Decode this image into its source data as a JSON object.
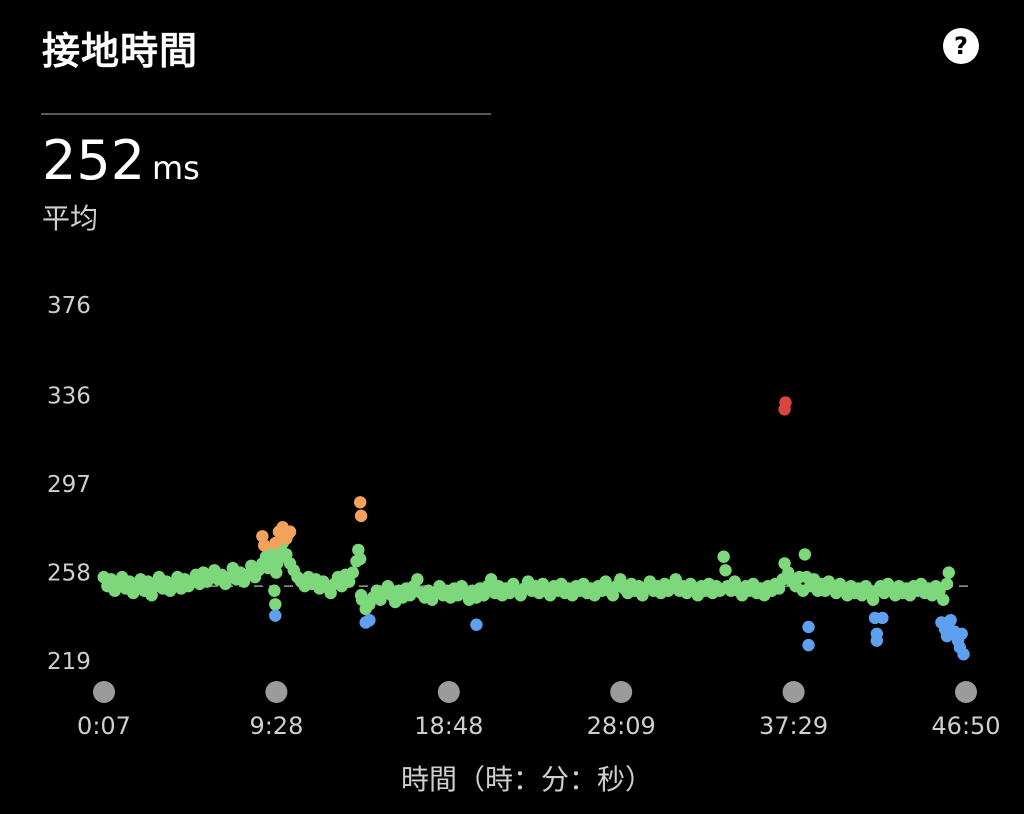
{
  "header": {
    "title": "接地時間",
    "help_label": "?"
  },
  "summary": {
    "value": "252",
    "unit": "ms",
    "label": "平均"
  },
  "colors": {
    "background": "#000000",
    "green": "#7CD87A",
    "orange": "#F2A25A",
    "blue": "#5EA0F0",
    "red": "#D9453F",
    "average_line": "#9a9a9a",
    "marker": "#9b9b9b"
  },
  "chart_data": {
    "type": "scatter",
    "ylim": [
      219,
      376
    ],
    "yticks": [
      "376",
      "336",
      "297",
      "258",
      "219"
    ],
    "xticks": [
      "0:07",
      "9:28",
      "18:48",
      "28:09",
      "37:29",
      "46:50"
    ],
    "xlim_minutes": [
      0.117,
      46.833
    ],
    "xlabel": "時間（時：分：秒）",
    "average": 252,
    "series": [
      {
        "color": "green",
        "points": [
          [
            0.1,
            256
          ],
          [
            0.3,
            252
          ],
          [
            0.5,
            255
          ],
          [
            0.7,
            250
          ],
          [
            0.9,
            253
          ],
          [
            1.1,
            256
          ],
          [
            1.3,
            251
          ],
          [
            1.5,
            254
          ],
          [
            1.7,
            249
          ],
          [
            1.9,
            252
          ],
          [
            2.1,
            255
          ],
          [
            2.3,
            250
          ],
          [
            2.5,
            254
          ],
          [
            2.7,
            248
          ],
          [
            2.9,
            252
          ],
          [
            3.1,
            256
          ],
          [
            3.3,
            251
          ],
          [
            3.5,
            254
          ],
          [
            3.7,
            250
          ],
          [
            3.9,
            253
          ],
          [
            4.1,
            256
          ],
          [
            4.3,
            251
          ],
          [
            4.5,
            255
          ],
          [
            4.7,
            252
          ],
          [
            4.9,
            254
          ],
          [
            5.1,
            257
          ],
          [
            5.3,
            253
          ],
          [
            5.5,
            258
          ],
          [
            5.7,
            254
          ],
          [
            5.9,
            256
          ],
          [
            6.1,
            259
          ],
          [
            6.3,
            255
          ],
          [
            6.5,
            257
          ],
          [
            6.7,
            253
          ],
          [
            6.9,
            256
          ],
          [
            7.1,
            260
          ],
          [
            7.3,
            255
          ],
          [
            7.5,
            258
          ],
          [
            7.7,
            254
          ],
          [
            7.9,
            257
          ],
          [
            8.1,
            261
          ],
          [
            8.3,
            256
          ],
          [
            8.5,
            259
          ],
          [
            8.7,
            262
          ],
          [
            8.9,
            265
          ],
          [
            9.0,
            260
          ],
          [
            9.1,
            268
          ],
          [
            9.2,
            264
          ],
          [
            9.3,
            266
          ],
          [
            9.35,
            250
          ],
          [
            9.4,
            244
          ],
          [
            9.45,
            258
          ],
          [
            9.5,
            262
          ],
          [
            9.6,
            270
          ],
          [
            9.7,
            268
          ],
          [
            9.8,
            271
          ],
          [
            9.9,
            265
          ],
          [
            10.0,
            266
          ],
          [
            10.2,
            262
          ],
          [
            10.4,
            259
          ],
          [
            10.6,
            256
          ],
          [
            10.8,
            254
          ],
          [
            11.0,
            252
          ],
          [
            11.2,
            256
          ],
          [
            11.4,
            253
          ],
          [
            11.6,
            255
          ],
          [
            11.8,
            251
          ],
          [
            12.0,
            254
          ],
          [
            12.2,
            252
          ],
          [
            12.4,
            249
          ],
          [
            12.6,
            253
          ],
          [
            12.8,
            256
          ],
          [
            13.0,
            252
          ],
          [
            13.2,
            257
          ],
          [
            13.4,
            254
          ],
          [
            13.6,
            258
          ],
          [
            13.8,
            263
          ],
          [
            13.9,
            268
          ],
          [
            14.0,
            264
          ],
          [
            14.05,
            248
          ],
          [
            14.1,
            246
          ],
          [
            14.3,
            242
          ],
          [
            14.5,
            244
          ],
          [
            14.7,
            247
          ],
          [
            14.9,
            250
          ],
          [
            15.1,
            246
          ],
          [
            15.3,
            249
          ],
          [
            15.5,
            252
          ],
          [
            15.7,
            248
          ],
          [
            15.9,
            245
          ],
          [
            16.1,
            250
          ],
          [
            16.3,
            247
          ],
          [
            16.5,
            251
          ],
          [
            16.7,
            248
          ],
          [
            16.9,
            252
          ],
          [
            17.1,
            255
          ],
          [
            17.3,
            249
          ],
          [
            17.5,
            247
          ],
          [
            17.7,
            250
          ],
          [
            17.9,
            246
          ],
          [
            18.1,
            249
          ],
          [
            18.3,
            252
          ],
          [
            18.5,
            248
          ],
          [
            18.7,
            250
          ],
          [
            18.9,
            247
          ],
          [
            19.1,
            251
          ],
          [
            19.3,
            248
          ],
          [
            19.5,
            252
          ],
          [
            19.7,
            249
          ],
          [
            19.9,
            246
          ],
          [
            20.1,
            250
          ],
          [
            20.3,
            247
          ],
          [
            20.5,
            251
          ],
          [
            20.7,
            248
          ],
          [
            20.9,
            252
          ],
          [
            21.1,
            255
          ],
          [
            21.3,
            249
          ],
          [
            21.5,
            252
          ],
          [
            21.7,
            248
          ],
          [
            21.9,
            251
          ],
          [
            22.1,
            249
          ],
          [
            22.3,
            253
          ],
          [
            22.5,
            250
          ],
          [
            22.7,
            248
          ],
          [
            22.9,
            251
          ],
          [
            23.1,
            254
          ],
          [
            23.3,
            250
          ],
          [
            23.5,
            252
          ],
          [
            23.7,
            249
          ],
          [
            23.9,
            253
          ],
          [
            24.1,
            250
          ],
          [
            24.3,
            248
          ],
          [
            24.5,
            252
          ],
          [
            24.7,
            250
          ],
          [
            24.9,
            253
          ],
          [
            25.1,
            249
          ],
          [
            25.3,
            251
          ],
          [
            25.5,
            248
          ],
          [
            25.7,
            252
          ],
          [
            25.9,
            250
          ],
          [
            26.1,
            253
          ],
          [
            26.3,
            249
          ],
          [
            26.5,
            251
          ],
          [
            26.7,
            248
          ],
          [
            26.9,
            252
          ],
          [
            27.1,
            250
          ],
          [
            27.3,
            254
          ],
          [
            27.5,
            250
          ],
          [
            27.7,
            248
          ],
          [
            27.9,
            252
          ],
          [
            28.1,
            255
          ],
          [
            28.3,
            251
          ],
          [
            28.5,
            249
          ],
          [
            28.7,
            253
          ],
          [
            28.9,
            250
          ],
          [
            29.1,
            252
          ],
          [
            29.3,
            248
          ],
          [
            29.5,
            251
          ],
          [
            29.7,
            254
          ],
          [
            29.9,
            250
          ],
          [
            30.1,
            252
          ],
          [
            30.3,
            249
          ],
          [
            30.5,
            253
          ],
          [
            30.7,
            250
          ],
          [
            30.9,
            252
          ],
          [
            31.1,
            255
          ],
          [
            31.3,
            250
          ],
          [
            31.5,
            252
          ],
          [
            31.7,
            249
          ],
          [
            31.9,
            253
          ],
          [
            32.1,
            251
          ],
          [
            32.3,
            248
          ],
          [
            32.5,
            252
          ],
          [
            32.7,
            250
          ],
          [
            32.9,
            253
          ],
          [
            33.1,
            249
          ],
          [
            33.3,
            252
          ],
          [
            33.5,
            250
          ],
          [
            33.7,
            265
          ],
          [
            33.8,
            259
          ],
          [
            33.9,
            252
          ],
          [
            34.1,
            250
          ],
          [
            34.3,
            254
          ],
          [
            34.5,
            250
          ],
          [
            34.7,
            248
          ],
          [
            34.9,
            252
          ],
          [
            35.1,
            250
          ],
          [
            35.3,
            253
          ],
          [
            35.5,
            249
          ],
          [
            35.7,
            251
          ],
          [
            35.9,
            248
          ],
          [
            36.1,
            252
          ],
          [
            36.3,
            250
          ],
          [
            36.5,
            253
          ],
          [
            36.7,
            251
          ],
          [
            36.9,
            255
          ],
          [
            37.0,
            262
          ],
          [
            37.2,
            258
          ],
          [
            37.4,
            254
          ],
          [
            37.6,
            252
          ],
          [
            37.8,
            256
          ],
          [
            38.0,
            250
          ],
          [
            38.1,
            266
          ],
          [
            38.2,
            256
          ],
          [
            38.4,
            252
          ],
          [
            38.6,
            255
          ],
          [
            38.8,
            250
          ],
          [
            39.0,
            253
          ],
          [
            39.2,
            250
          ],
          [
            39.4,
            254
          ],
          [
            39.6,
            251
          ],
          [
            39.8,
            249
          ],
          [
            40.0,
            253
          ],
          [
            40.2,
            250
          ],
          [
            40.4,
            248
          ],
          [
            40.6,
            252
          ],
          [
            40.8,
            249
          ],
          [
            41.0,
            251
          ],
          [
            41.2,
            248
          ],
          [
            41.4,
            252
          ],
          [
            41.6,
            250
          ],
          [
            41.8,
            246
          ],
          [
            42.0,
            250
          ],
          [
            42.2,
            252
          ],
          [
            42.4,
            249
          ],
          [
            42.6,
            253
          ],
          [
            42.8,
            250
          ],
          [
            43.0,
            248
          ],
          [
            43.2,
            252
          ],
          [
            43.4,
            249
          ],
          [
            43.6,
            251
          ],
          [
            43.8,
            248
          ],
          [
            44.0,
            252
          ],
          [
            44.2,
            250
          ],
          [
            44.4,
            253
          ],
          [
            44.6,
            249
          ],
          [
            44.8,
            251
          ],
          [
            45.0,
            248
          ],
          [
            45.2,
            252
          ],
          [
            45.4,
            250
          ],
          [
            45.6,
            246
          ],
          [
            45.8,
            253
          ],
          [
            45.9,
            258
          ]
        ]
      },
      {
        "color": "orange",
        "points": [
          [
            8.7,
            274
          ],
          [
            8.8,
            270
          ],
          [
            9.4,
            271
          ],
          [
            9.6,
            276
          ],
          [
            9.8,
            278
          ],
          [
            10.0,
            273
          ],
          [
            10.1,
            275
          ],
          [
            10.2,
            276
          ],
          [
            14.0,
            289
          ],
          [
            14.05,
            283
          ]
        ]
      },
      {
        "color": "blue",
        "points": [
          [
            9.4,
            239
          ],
          [
            14.3,
            236
          ],
          [
            14.5,
            237
          ],
          [
            20.3,
            235
          ],
          [
            38.3,
            234
          ],
          [
            38.3,
            226
          ],
          [
            41.9,
            238
          ],
          [
            42.0,
            228
          ],
          [
            42.0,
            231
          ],
          [
            42.3,
            238
          ],
          [
            45.5,
            236
          ],
          [
            45.7,
            233
          ],
          [
            45.8,
            230
          ],
          [
            46.0,
            237
          ],
          [
            46.2,
            232
          ],
          [
            46.4,
            228
          ],
          [
            46.5,
            225
          ],
          [
            46.6,
            231
          ],
          [
            46.7,
            222
          ]
        ]
      },
      {
        "color": "red",
        "points": [
          [
            37.0,
            330
          ],
          [
            37.05,
            333
          ]
        ]
      }
    ]
  }
}
